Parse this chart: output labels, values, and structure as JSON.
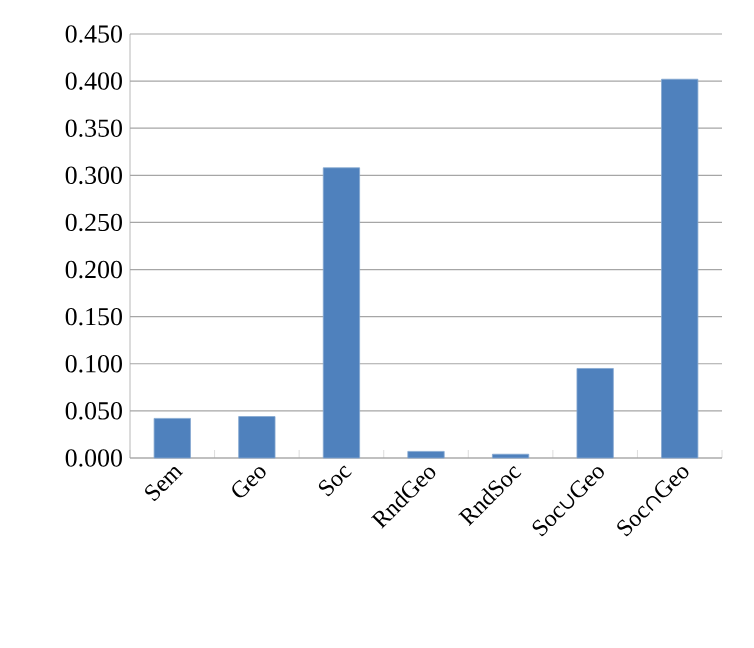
{
  "chart_data": {
    "type": "bar",
    "categories": [
      "Sem",
      "Geo",
      "Soc",
      "RndGeo",
      "RndSoc",
      "Soc∪Geo",
      "Soc∩Geo"
    ],
    "values": [
      0.042,
      0.044,
      0.308,
      0.007,
      0.004,
      0.095,
      0.402
    ],
    "color": "#4f81bd",
    "ylim": [
      0,
      0.45
    ],
    "yticks": [
      {
        "value": 0,
        "label": "0.000"
      },
      {
        "value": 0.05,
        "label": "0.050"
      },
      {
        "value": 0.1,
        "label": "0.100"
      },
      {
        "value": 0.15,
        "label": "0.150"
      },
      {
        "value": 0.2,
        "label": "0.200"
      },
      {
        "value": 0.25,
        "label": "0.250"
      },
      {
        "value": 0.3,
        "label": "0.300"
      },
      {
        "value": 0.35,
        "label": "0.350"
      },
      {
        "value": 0.4,
        "label": "0.400"
      },
      {
        "value": 0.45,
        "label": "0.450"
      }
    ],
    "grid": "y"
  }
}
